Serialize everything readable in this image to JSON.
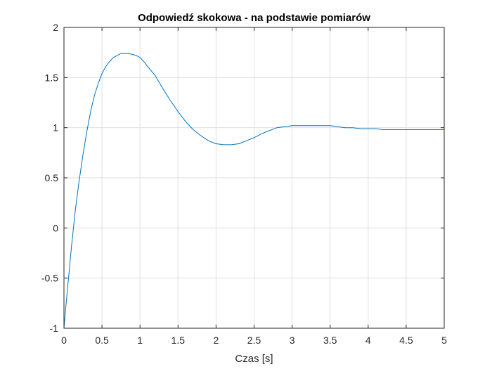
{
  "chart_data": {
    "type": "line",
    "title": "Odpowiedź skokowa - na podstawie pomiarów",
    "xlabel": "Czas [s]",
    "ylabel": "",
    "xlim": [
      0,
      5
    ],
    "ylim": [
      -1,
      2
    ],
    "grid": true,
    "x_ticks": [
      "0",
      "0.5",
      "1",
      "1.5",
      "2",
      "2.5",
      "3",
      "3.5",
      "4",
      "4.5",
      "5"
    ],
    "y_ticks": [
      "-1",
      "-0.5",
      "0",
      "0.5",
      "1",
      "1.5",
      "2"
    ],
    "series": [
      {
        "color": "#0072bd",
        "x": [
          0.0,
          0.02,
          0.05,
          0.1,
          0.15,
          0.2,
          0.25,
          0.3,
          0.35,
          0.4,
          0.45,
          0.5,
          0.55,
          0.6,
          0.65,
          0.7,
          0.75,
          0.8,
          0.85,
          0.9,
          0.95,
          1.0,
          1.05,
          1.1,
          1.2,
          1.3,
          1.4,
          1.5,
          1.6,
          1.7,
          1.8,
          1.9,
          2.0,
          2.1,
          2.2,
          2.3,
          2.4,
          2.5,
          2.6,
          2.7,
          2.8,
          2.9,
          3.0,
          3.1,
          3.2,
          3.3,
          3.4,
          3.5,
          3.6,
          3.7,
          3.8,
          3.9,
          4.0,
          4.1,
          4.2,
          4.3,
          4.4,
          4.5,
          4.6,
          4.7,
          4.8,
          4.9,
          5.0
        ],
        "y": [
          -1.0,
          -0.82,
          -0.58,
          -0.18,
          0.18,
          0.47,
          0.73,
          0.96,
          1.16,
          1.32,
          1.44,
          1.54,
          1.61,
          1.66,
          1.7,
          1.72,
          1.74,
          1.74,
          1.74,
          1.73,
          1.72,
          1.7,
          1.66,
          1.61,
          1.52,
          1.39,
          1.27,
          1.16,
          1.06,
          0.98,
          0.92,
          0.87,
          0.84,
          0.83,
          0.83,
          0.84,
          0.87,
          0.9,
          0.94,
          0.97,
          1.0,
          1.01,
          1.02,
          1.02,
          1.02,
          1.02,
          1.02,
          1.02,
          1.01,
          1.0,
          1.0,
          0.99,
          0.99,
          0.99,
          0.98,
          0.98,
          0.98,
          0.98,
          0.98,
          0.98,
          0.98,
          0.98,
          0.98
        ]
      }
    ]
  }
}
